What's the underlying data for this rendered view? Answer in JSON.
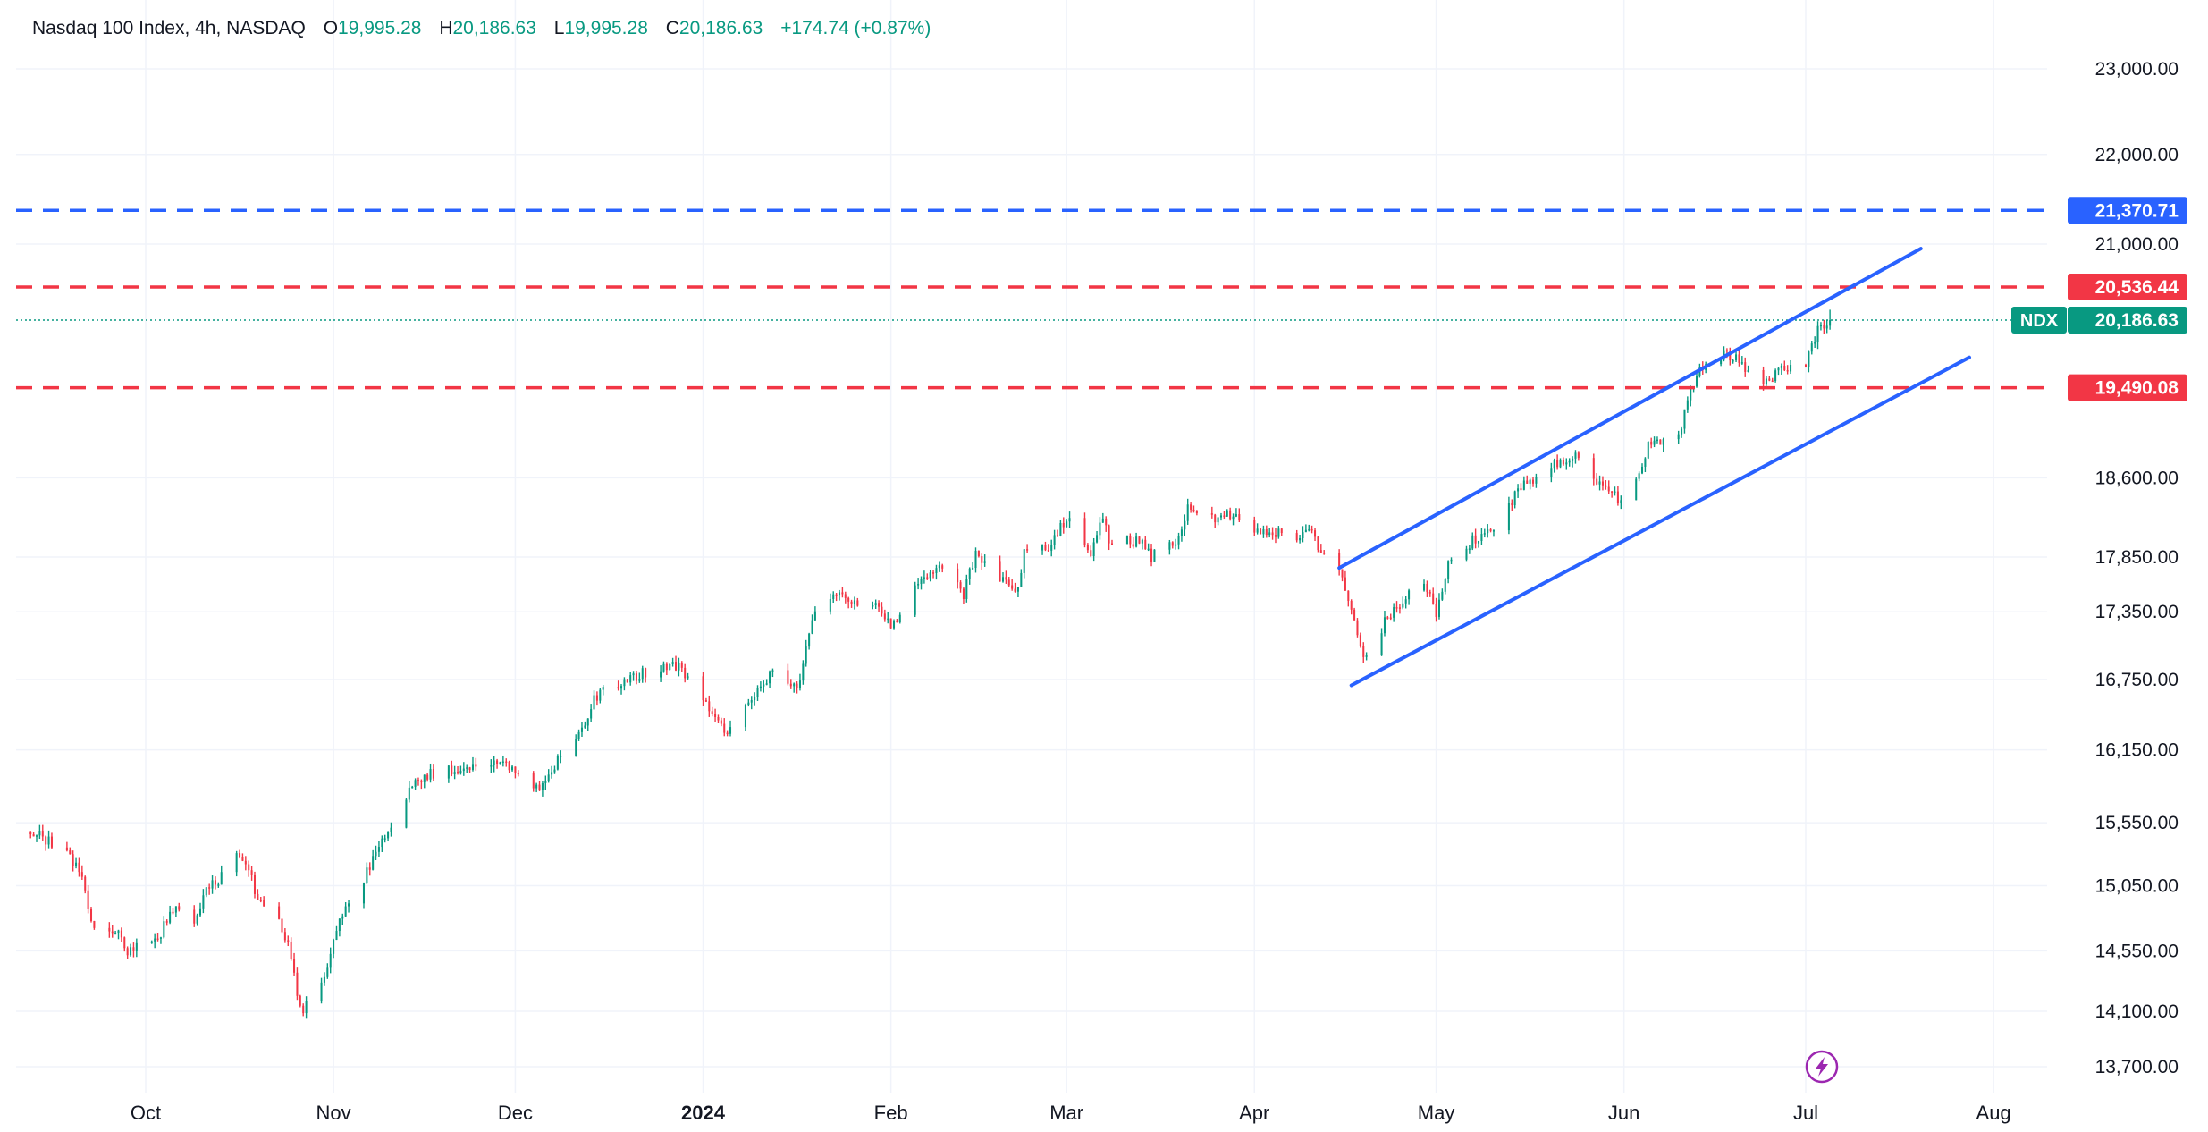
{
  "header": {
    "symbol_line": "Nasdaq 100 Index, 4h, NASDAQ",
    "open_label": "O",
    "open": "19,995.28",
    "high_label": "H",
    "high": "20,186.63",
    "low_label": "L",
    "low": "19,995.28",
    "close_label": "C",
    "close": "20,186.63",
    "change": "+174.74 (+0.87%)"
  },
  "colors": {
    "up": "#089981",
    "down": "#f23645",
    "channel": "#2962ff",
    "resistance_blue": "#2962ff",
    "level_red": "#f23645",
    "grid": "#f0f3fa",
    "text": "#131722",
    "lightning": "#9c27b0"
  },
  "chart_data": {
    "type": "candlestick",
    "symbol": "NDX",
    "interval": "4h",
    "y_axis": {
      "ticks": [
        13700,
        14100,
        14550,
        15050,
        15550,
        16150,
        16750,
        17350,
        17850,
        18600,
        21000,
        22000,
        23000
      ],
      "tick_labels": [
        "13,700.00",
        "14,100.00",
        "14,550.00",
        "15,050.00",
        "15,550.00",
        "16,150.00",
        "16,750.00",
        "17,350.00",
        "17,850.00",
        "18,600.00",
        "21,000.00",
        "22,000.00",
        "23,000.00"
      ],
      "scale": "log"
    },
    "x_axis": {
      "labels": [
        "Oct",
        "Nov",
        "Dec",
        "2024",
        "Feb",
        "Mar",
        "Apr",
        "May",
        "Jun",
        "Jul",
        "Aug"
      ],
      "dates": [
        "2023-10-01",
        "2023-11-01",
        "2023-12-01",
        "2024-01-01",
        "2024-02-01",
        "2024-03-01",
        "2024-04-01",
        "2024-05-01",
        "2024-06-01",
        "2024-07-01",
        "2024-08-01"
      ],
      "range": [
        "2023-09-12",
        "2024-08-31"
      ]
    },
    "levels": [
      {
        "price": 21370.71,
        "label": "21,370.71",
        "style": "dashed",
        "color": "#2962ff"
      },
      {
        "price": 20536.44,
        "label": "20,536.44",
        "style": "dashed",
        "color": "#f23645"
      },
      {
        "price": 19490.08,
        "label": "19,490.08",
        "style": "dashed",
        "color": "#f23645"
      }
    ],
    "last_price": {
      "symbol": "NDX",
      "price": 20186.63,
      "label": "20,186.63",
      "color": "#089981"
    },
    "channel": {
      "upper": [
        {
          "date": "2024-04-15",
          "price": 17750
        },
        {
          "date": "2024-07-20",
          "price": 20950
        }
      ],
      "lower": [
        {
          "date": "2024-04-17",
          "price": 16700
        },
        {
          "date": "2024-07-28",
          "price": 19800
        }
      ]
    },
    "path": [
      [
        "2023-09-12",
        15480
      ],
      [
        "2023-09-15",
        15400
      ],
      [
        "2023-09-19",
        15250
      ],
      [
        "2023-09-21",
        15050
      ],
      [
        "2023-09-22",
        14750
      ],
      [
        "2023-09-26",
        14700
      ],
      [
        "2023-09-28",
        14550
      ],
      [
        "2023-10-03",
        14650
      ],
      [
        "2023-10-06",
        14900
      ],
      [
        "2023-10-09",
        14750
      ],
      [
        "2023-10-11",
        15000
      ],
      [
        "2023-10-13",
        15100
      ],
      [
        "2023-10-16",
        15300
      ],
      [
        "2023-10-18",
        15150
      ],
      [
        "2023-10-20",
        14900
      ],
      [
        "2023-10-23",
        14800
      ],
      [
        "2023-10-25",
        14500
      ],
      [
        "2023-10-26",
        14200
      ],
      [
        "2023-10-27",
        14120
      ],
      [
        "2023-10-31",
        14400
      ],
      [
        "2023-11-02",
        14800
      ],
      [
        "2023-11-06",
        15100
      ],
      [
        "2023-11-08",
        15300
      ],
      [
        "2023-11-10",
        15500
      ],
      [
        "2023-11-14",
        15850
      ],
      [
        "2023-11-17",
        15950
      ],
      [
        "2023-11-22",
        16000
      ],
      [
        "2023-11-28",
        16050
      ],
      [
        "2023-12-01",
        16000
      ],
      [
        "2023-12-04",
        15800
      ],
      [
        "2023-12-06",
        15900
      ],
      [
        "2023-12-08",
        16050
      ],
      [
        "2023-12-12",
        16300
      ],
      [
        "2023-12-14",
        16600
      ],
      [
        "2023-12-18",
        16700
      ],
      [
        "2023-12-22",
        16800
      ],
      [
        "2023-12-27",
        16900
      ],
      [
        "2023-12-29",
        16800
      ],
      [
        "2024-01-03",
        16400
      ],
      [
        "2024-01-05",
        16300
      ],
      [
        "2024-01-09",
        16600
      ],
      [
        "2024-01-12",
        16800
      ],
      [
        "2024-01-17",
        16700
      ],
      [
        "2024-01-19",
        17300
      ],
      [
        "2024-01-23",
        17500
      ],
      [
        "2024-01-26",
        17450
      ],
      [
        "2024-01-30",
        17400
      ],
      [
        "2024-02-01",
        17200
      ],
      [
        "2024-02-05",
        17550
      ],
      [
        "2024-02-09",
        17800
      ],
      [
        "2024-02-13",
        17500
      ],
      [
        "2024-02-15",
        17900
      ],
      [
        "2024-02-20",
        17600
      ],
      [
        "2024-02-22",
        17550
      ],
      [
        "2024-02-23",
        17900
      ],
      [
        "2024-02-27",
        17950
      ],
      [
        "2024-03-01",
        18200
      ],
      [
        "2024-03-05",
        17900
      ],
      [
        "2024-03-07",
        18250
      ],
      [
        "2024-03-08",
        18000
      ],
      [
        "2024-03-13",
        18000
      ],
      [
        "2024-03-15",
        17850
      ],
      [
        "2024-03-19",
        18000
      ],
      [
        "2024-03-21",
        18300
      ],
      [
        "2024-03-26",
        18200
      ],
      [
        "2024-03-28",
        18250
      ],
      [
        "2024-04-02",
        18050
      ],
      [
        "2024-04-04",
        18100
      ],
      [
        "2024-04-08",
        18000
      ],
      [
        "2024-04-10",
        18150
      ],
      [
        "2024-04-12",
        17900
      ],
      [
        "2024-04-15",
        17700
      ],
      [
        "2024-04-17",
        17400
      ],
      [
        "2024-04-19",
        16900
      ],
      [
        "2024-04-23",
        17300
      ],
      [
        "2024-04-25",
        17400
      ],
      [
        "2024-04-29",
        17650
      ],
      [
        "2024-05-01",
        17300
      ],
      [
        "2024-05-03",
        17800
      ],
      [
        "2024-05-07",
        18000
      ],
      [
        "2024-05-10",
        18100
      ],
      [
        "2024-05-15",
        18500
      ],
      [
        "2024-05-20",
        18700
      ],
      [
        "2024-05-22",
        18750
      ],
      [
        "2024-05-24",
        18800
      ],
      [
        "2024-05-29",
        18500
      ],
      [
        "2024-05-31",
        18400
      ],
      [
        "2024-06-03",
        18550
      ],
      [
        "2024-06-05",
        18900
      ],
      [
        "2024-06-10",
        19000
      ],
      [
        "2024-06-12",
        19500
      ],
      [
        "2024-06-14",
        19700
      ],
      [
        "2024-06-18",
        19850
      ],
      [
        "2024-06-20",
        19750
      ],
      [
        "2024-06-24",
        19500
      ],
      [
        "2024-06-26",
        19650
      ],
      [
        "2024-06-28",
        19700
      ],
      [
        "2024-07-01",
        19750
      ],
      [
        "2024-07-02",
        19900
      ],
      [
        "2024-07-03",
        20100
      ],
      [
        "2024-07-05",
        20186.63
      ]
    ]
  }
}
